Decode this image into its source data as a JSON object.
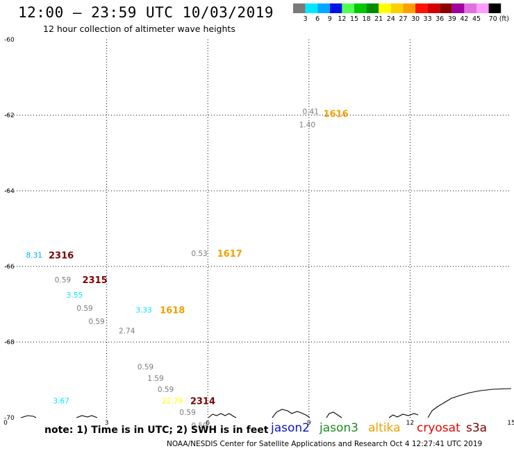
{
  "title": "12:00 – 23:59 UTC 10/03/2019",
  "subtitle": "12 hour collection of altimeter wave heights",
  "note": "note: 1) Time is in UTC; 2) SWH is in feet",
  "credit": "NOAA/NESDIS Center for Satellite Applications and Research    Oct  4 12:27:41 UTC 2019",
  "satellites": [
    {
      "name": "jason2",
      "color": "#0a14c8"
    },
    {
      "name": "jason3",
      "color": "#1a8c1a"
    },
    {
      "name": "altika",
      "color": "#f0a000"
    },
    {
      "name": "cryosat",
      "color": "#e60000"
    },
    {
      "name": "s3a",
      "color": "#7a0000"
    }
  ],
  "colorbar": {
    "colors": [
      "#7a7a7a",
      "#00e8ff",
      "#00a8ff",
      "#0014e6",
      "#50ff50",
      "#00c800",
      "#008c00",
      "#ffff00",
      "#ffd000",
      "#ffa000",
      "#ff1400",
      "#d20000",
      "#8c0000",
      "#a000a0",
      "#e070e0",
      "#ff9cff",
      "#000000"
    ],
    "labels": [
      "3",
      "6",
      "9",
      "12",
      "15",
      "18",
      "21",
      "24",
      "27",
      "30",
      "33",
      "36",
      "39",
      "42",
      "45",
      "70 (ft)"
    ]
  },
  "map": {
    "xlim": [
      0,
      15
    ],
    "ylim": [
      -70,
      -60
    ],
    "xticks": [
      "0",
      "3",
      "6",
      "9",
      "12",
      "15"
    ],
    "yticks": [
      "-60",
      "-62",
      "-64",
      "-66",
      "-68",
      "-70"
    ]
  },
  "obs": [
    {
      "lon": 8.95,
      "lat": -62.25,
      "v": "1.40",
      "color": "#7a7a7a"
    },
    {
      "lon": 9.05,
      "lat": -61.9,
      "v": "0.41",
      "color": "#7a7a7a"
    },
    {
      "lon": 0.85,
      "lat": -65.7,
      "v": "8.31",
      "color": "#00a8ff"
    },
    {
      "lon": 5.75,
      "lat": -65.65,
      "v": "0.53",
      "color": "#7a7a7a"
    },
    {
      "lon": 1.7,
      "lat": -66.35,
      "v": "0.59",
      "color": "#7a7a7a"
    },
    {
      "lon": 2.05,
      "lat": -66.75,
      "v": "3.55",
      "color": "#00e8ff"
    },
    {
      "lon": 2.35,
      "lat": -67.1,
      "v": "0.59",
      "color": "#7a7a7a"
    },
    {
      "lon": 2.7,
      "lat": -67.45,
      "v": "0.59",
      "color": "#7a7a7a"
    },
    {
      "lon": 4.1,
      "lat": -67.15,
      "v": "3.33",
      "color": "#00e8ff"
    },
    {
      "lon": 3.6,
      "lat": -67.7,
      "v": "2.74",
      "color": "#7a7a7a"
    },
    {
      "lon": 4.15,
      "lat": -68.65,
      "v": "0.59",
      "color": "#7a7a7a"
    },
    {
      "lon": 4.45,
      "lat": -68.95,
      "v": "1.59",
      "color": "#7a7a7a"
    },
    {
      "lon": 4.75,
      "lat": -69.25,
      "v": "0.59",
      "color": "#7a7a7a"
    },
    {
      "lon": 1.65,
      "lat": -69.55,
      "v": "3.67",
      "color": "#00e8ff"
    },
    {
      "lon": 4.95,
      "lat": -69.55,
      "v": "22.79",
      "color": "#ffff00"
    },
    {
      "lon": 5.4,
      "lat": -69.85,
      "v": "0.59",
      "color": "#7a7a7a"
    },
    {
      "lon": 5.75,
      "lat": -70.2,
      "v": "0.59",
      "color": "#7a7a7a"
    }
  ],
  "passes": [
    {
      "lon": 9.8,
      "lat": -61.95,
      "id": "1616",
      "color": "#f0a000"
    },
    {
      "lon": 1.65,
      "lat": -65.7,
      "id": "2316",
      "color": "#7a0000"
    },
    {
      "lon": 6.65,
      "lat": -65.65,
      "id": "1617",
      "color": "#f0a000"
    },
    {
      "lon": 2.65,
      "lat": -66.35,
      "id": "2315",
      "color": "#7a0000"
    },
    {
      "lon": 4.95,
      "lat": -67.15,
      "id": "1618",
      "color": "#f0a000"
    },
    {
      "lon": 5.85,
      "lat": -69.55,
      "id": "2314",
      "color": "#7a0000"
    }
  ]
}
